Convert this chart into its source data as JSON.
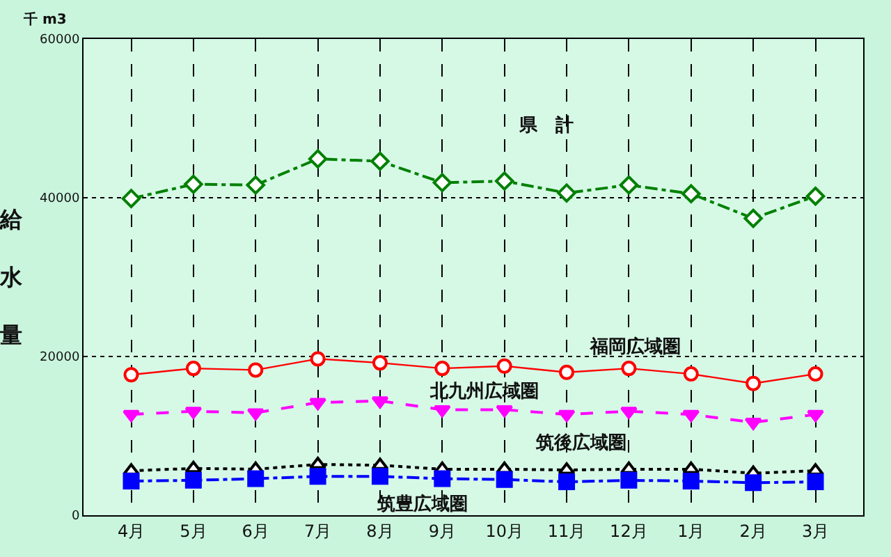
{
  "chart_data": {
    "type": "line",
    "ylabel": "給水量",
    "annotations": [
      "千 m3"
    ],
    "categories": [
      "4月",
      "5月",
      "6月",
      "7月",
      "8月",
      "9月",
      "10月",
      "11月",
      "12月",
      "1月",
      "2月",
      "3月"
    ],
    "series": [
      {
        "name": "県　計",
        "color": "#008000",
        "marker": "diamond",
        "line_style": "dashdot",
        "values": [
          39900,
          41700,
          41600,
          44900,
          44600,
          41900,
          42100,
          40600,
          41600,
          40500,
          37400,
          40200
        ]
      },
      {
        "name": "福岡広域圏",
        "color": "#ff0000",
        "marker": "circle",
        "line_style": "solid",
        "values": [
          17700,
          18500,
          18300,
          19700,
          19200,
          18500,
          18800,
          18000,
          18500,
          17800,
          16600,
          17800
        ]
      },
      {
        "name": "北九州広域圏",
        "color": "#ff00ff",
        "marker": "triangle-down",
        "line_style": "dashed",
        "values": [
          12700,
          13100,
          12900,
          14200,
          14400,
          13300,
          13300,
          12700,
          13100,
          12700,
          11700,
          12700
        ]
      },
      {
        "name": "筑後広域圏",
        "color": "#000000",
        "marker": "triangle",
        "line_style": "dotted",
        "values": [
          5600,
          5900,
          5800,
          6400,
          6300,
          5800,
          5800,
          5700,
          5800,
          5800,
          5300,
          5600
        ]
      },
      {
        "name": "筑豊広域圏",
        "color": "#0000ff",
        "marker": "square",
        "line_style": "dashdot",
        "values": [
          4300,
          4400,
          4600,
          4900,
          4900,
          4600,
          4500,
          4200,
          4400,
          4300,
          4100,
          4200
        ]
      }
    ],
    "ylim": [
      0,
      60000
    ],
    "yticks": [
      0,
      20000,
      40000,
      60000
    ],
    "grid": true,
    "legend": false
  }
}
